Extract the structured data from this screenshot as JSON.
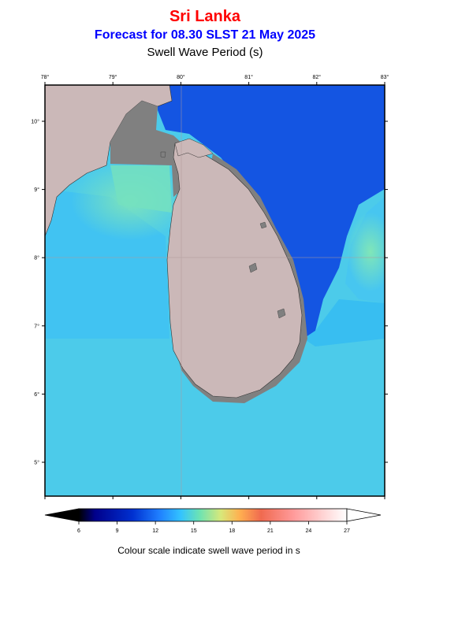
{
  "header": {
    "region": "Sri Lanka",
    "forecast": "Forecast for  08.30 SLST 21 May 2025",
    "variable": "Swell Wave Period (s)"
  },
  "map": {
    "lon_labels": [
      "78°",
      "79°",
      "80°",
      "81°",
      "82°",
      "83°"
    ],
    "lat_labels": [
      "10°",
      "9°",
      "8°",
      "7°",
      "6°",
      "5°"
    ],
    "land_color": "#cbb8b8",
    "shelf_color": "#808080"
  },
  "colorbar": {
    "ticks": [
      "6",
      "9",
      "12",
      "15",
      "18",
      "21",
      "24",
      "27"
    ],
    "colors": [
      "#000000",
      "#00008b",
      "#0030d0",
      "#1f7fff",
      "#33c3ff",
      "#6ce3b3",
      "#d8e87a",
      "#ffb050",
      "#f06a50",
      "#ff9a9a",
      "#ffd8d8",
      "#ffffff"
    ]
  },
  "caption": "Colour scale indicate swell wave period in s"
}
